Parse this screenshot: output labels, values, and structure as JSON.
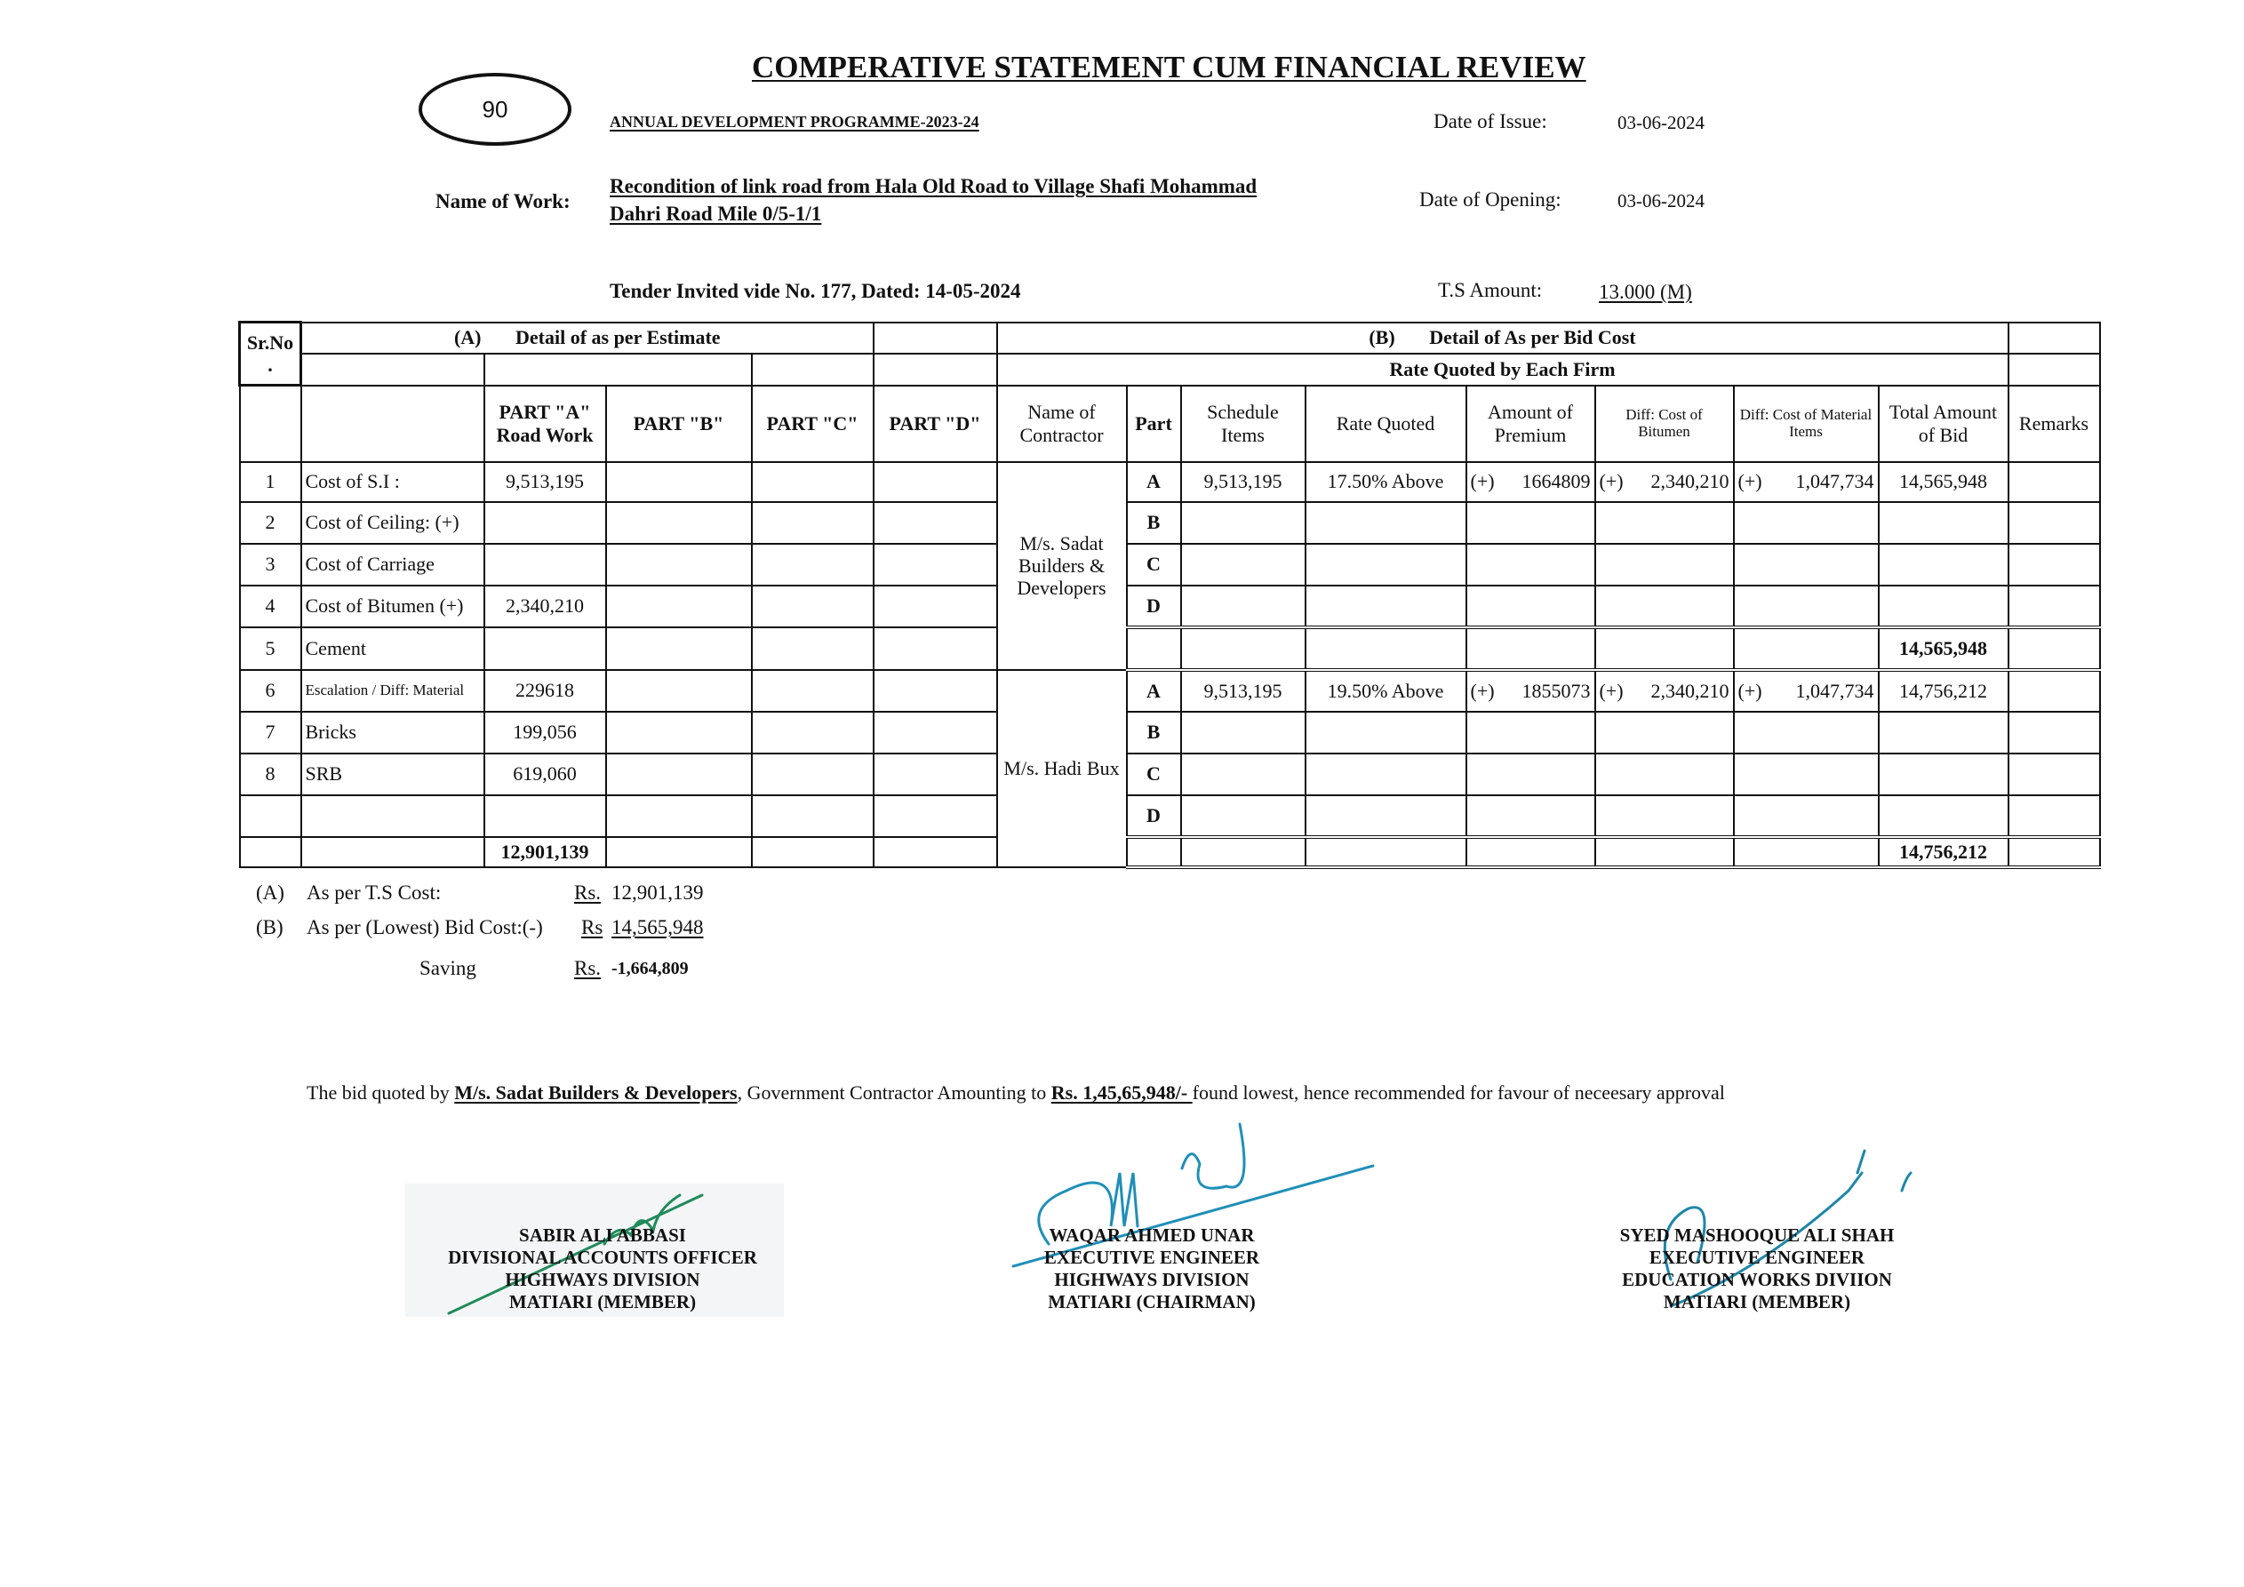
{
  "header": {
    "title": "COMPERATIVE STATEMENT CUM FINANCIAL REVIEW",
    "page_number": "90",
    "programme": "ANNUAL DEVELOPMENT PROGRAMME-2023-24",
    "date_of_issue_label": "Date of Issue:",
    "date_of_issue": "03-06-2024",
    "name_of_work_label": "Name of Work:",
    "name_of_work_line1": "Recondition of link road from Hala Old Road to Village Shafi Mohammad",
    "name_of_work_line2": "Dahri Road Mile 0/5-1/1",
    "date_of_opening_label": "Date of Opening:",
    "date_of_opening": "03-06-2024",
    "tender": "Tender Invited vide No. 177, Dated: 14-05-2024",
    "ts_amount_label": "T.S Amount:",
    "ts_amount": "13.000 (M)"
  },
  "table": {
    "sr_no": "Sr.No",
    "sr_no_dot": ".",
    "section_a_code": "(A)",
    "section_a_title": "Detail of as per Estimate",
    "section_b_code": "(B)",
    "section_b_title": "Detail of As per Bid Cost",
    "rate_quoted_by_each_firm": "Rate Quoted by Each Firm",
    "columns": {
      "part_a_l1": "PART \"A\"",
      "part_a_l2": "Road Work",
      "part_b": "PART \"B\"",
      "part_c": "PART \"C\"",
      "part_d": "PART \"D\"",
      "contractor": "Name of Contractor",
      "part": "Part",
      "schedule_items": "Schedule Items",
      "rate_quoted": "Rate Quoted",
      "premium": "Amount of Premium",
      "diff_bitumen": "Diff: Cost of Bitumen",
      "diff_material": "Diff: Cost of Material Items",
      "total_bid": "Total Amount of Bid",
      "remarks": "Remarks"
    },
    "estimate_rows": [
      {
        "sr": "1",
        "item": "Cost of S.I :",
        "part_a": "9,513,195"
      },
      {
        "sr": "2",
        "item": "Cost of Ceiling:  (+)",
        "part_a": ""
      },
      {
        "sr": "3",
        "item": "Cost of Carriage",
        "part_a": ""
      },
      {
        "sr": "4",
        "item": "Cost of Bitumen (+)",
        "part_a": "2,340,210"
      },
      {
        "sr": "5",
        "item": "Cement",
        "part_a": ""
      },
      {
        "sr": "6",
        "item": "Escalation / Diff: Material",
        "part_a": "229618"
      },
      {
        "sr": "7",
        "item": "Bricks",
        "part_a": "199,056"
      },
      {
        "sr": "8",
        "item": "SRB",
        "part_a": "619,060"
      },
      {
        "sr": "",
        "item": "",
        "part_a": ""
      }
    ],
    "estimate_total": "12,901,139",
    "bids": [
      {
        "contractor": "M/s. Sadat Builders & Developers",
        "parts": [
          {
            "part": "A",
            "schedule": "9,513,195",
            "rate": "17.50%  Above",
            "premium_sign": "(+)",
            "premium": "1664809",
            "bitumen_sign": "(+)",
            "bitumen": "2,340,210",
            "material_sign": "(+)",
            "material": "1,047,734",
            "total": "14,565,948"
          },
          {
            "part": "B"
          },
          {
            "part": "C"
          },
          {
            "part": "D"
          }
        ],
        "total": "14,565,948"
      },
      {
        "contractor": "M/s. Hadi Bux",
        "parts": [
          {
            "part": "A",
            "schedule": "9,513,195",
            "rate": "19.50%  Above",
            "premium_sign": "(+)",
            "premium": "1855073",
            "bitumen_sign": "(+)",
            "bitumen": "2,340,210",
            "material_sign": "(+)",
            "material": "1,047,734",
            "total": "14,756,212"
          },
          {
            "part": "B"
          },
          {
            "part": "C"
          },
          {
            "part": "D"
          }
        ],
        "total": "14,756,212"
      }
    ]
  },
  "summary": {
    "a_code": "(A)",
    "a_label": "As per T.S Cost:",
    "a_rs": "Rs.",
    "a_value": "12,901,139",
    "b_code": "(B)",
    "b_label": "As per (Lowest) Bid Cost:(-)",
    "b_rs": "Rs",
    "b_value": "14,565,948",
    "saving_label": "Saving",
    "saving_rs": "Rs.",
    "saving_value": "-1,664,809"
  },
  "recommendation": {
    "pre": "The bid quoted by ",
    "firm": "M/s. Sadat Builders & Developers",
    "mid": ", Government Contractor Amounting to ",
    "amount": "Rs. 1,45,65,948/- ",
    "post": " found lowest, hence recommended for favour of neceesary approval"
  },
  "signatories": [
    {
      "name": "SABIR ALI ABBASI",
      "title": "DIVISIONAL ACCOUNTS OFFICER",
      "division": "HIGHWAYS DIVISION",
      "role": "MATIARI (MEMBER)",
      "ink_color": "#1f8a5a"
    },
    {
      "name": "WAQAR AHMED UNAR",
      "title": "EXECUTIVE ENGINEER",
      "division": "HIGHWAYS DIVISION",
      "role": "MATIARI (CHAIRMAN)",
      "ink_color": "#1f8fb8"
    },
    {
      "name": "SYED MASHOOQUE ALI SHAH",
      "title": "EXECUTIVE ENGINEER",
      "division": "EDUCATION WORKS DIVIION",
      "role": "MATIARI (MEMBER)",
      "ink_color": "#1f86a8"
    }
  ]
}
